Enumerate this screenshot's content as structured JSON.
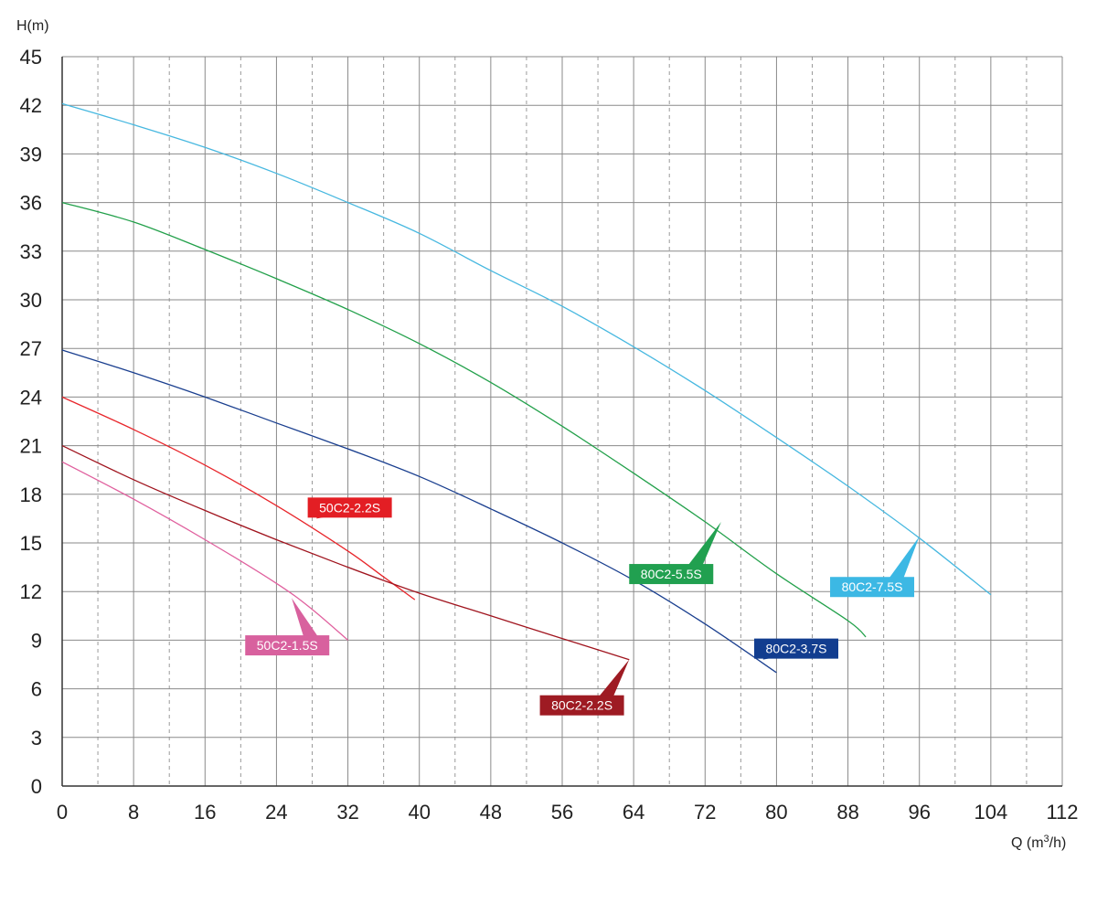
{
  "chart_data": {
    "type": "line",
    "ylabel": "H(m)",
    "xlabel_main": "Q (m",
    "xlabel_sup": "3",
    "xlabel_end": "/h)",
    "xlim": [
      0,
      112
    ],
    "ylim": [
      0,
      45
    ],
    "x_ticks": [
      0,
      8,
      16,
      24,
      32,
      40,
      48,
      56,
      64,
      72,
      80,
      88,
      96,
      104,
      112
    ],
    "y_ticks": [
      0,
      3,
      6,
      9,
      12,
      15,
      18,
      21,
      24,
      27,
      30,
      33,
      36,
      39,
      42,
      45
    ],
    "grid": {
      "major_solid_every": 8,
      "minor_dashed_offset": 4
    },
    "series": [
      {
        "name": "50C2-1.5S",
        "color": "#e0609e",
        "label_color": "#d8619e",
        "points": [
          [
            0,
            20
          ],
          [
            8,
            17.7
          ],
          [
            16,
            15.2
          ],
          [
            24,
            12.5
          ],
          [
            28,
            10.9
          ],
          [
            32,
            9
          ]
        ],
        "label_anchor": [
          25.7,
          11.6
        ],
        "label_pos": [
          20.5,
          9.3
        ]
      },
      {
        "name": "50C2-2.2S",
        "color": "#e8262b",
        "label_color": "#e31e24",
        "points": [
          [
            0,
            24
          ],
          [
            8,
            22
          ],
          [
            16,
            19.8
          ],
          [
            24,
            17.3
          ],
          [
            32,
            14.5
          ],
          [
            36,
            12.9
          ],
          [
            39.5,
            11.5
          ]
        ],
        "label_anchor": [
          28.5,
          16.5
        ],
        "label_pos": [
          27.5,
          17.8
        ]
      },
      {
        "name": "80C2-2.2S",
        "color": "#a0141e",
        "label_color": "#9e1b23",
        "points": [
          [
            0,
            21
          ],
          [
            8,
            18.9
          ],
          [
            16,
            17
          ],
          [
            24,
            15.2
          ],
          [
            32,
            13.5
          ],
          [
            40,
            11.9
          ],
          [
            48,
            10.5
          ],
          [
            56,
            9.1
          ],
          [
            63.5,
            7.8
          ]
        ],
        "label_anchor": [
          63.5,
          7.8
        ],
        "label_pos": [
          53.5,
          5.6
        ]
      },
      {
        "name": "80C2-3.7S",
        "color": "#1a3f8f",
        "label_color": "#123d8f",
        "points": [
          [
            0,
            26.9
          ],
          [
            8,
            25.5
          ],
          [
            16,
            24
          ],
          [
            24,
            22.4
          ],
          [
            32,
            20.8
          ],
          [
            40,
            19.1
          ],
          [
            48,
            17.1
          ],
          [
            56,
            15
          ],
          [
            64,
            12.7
          ],
          [
            72,
            10
          ],
          [
            80,
            7
          ]
        ],
        "label_anchor": [
          78.5,
          7.8
        ],
        "label_pos": [
          77.5,
          9.1
        ]
      },
      {
        "name": "80C2-5.5S",
        "color": "#22a04a",
        "label_color": "#21a050",
        "points": [
          [
            0,
            36
          ],
          [
            8,
            34.8
          ],
          [
            16,
            33.1
          ],
          [
            24,
            31.3
          ],
          [
            32,
            29.4
          ],
          [
            40,
            27.3
          ],
          [
            48,
            24.9
          ],
          [
            56,
            22.2
          ],
          [
            64,
            19.3
          ],
          [
            72,
            16.3
          ],
          [
            80,
            13.1
          ],
          [
            88,
            10.2
          ],
          [
            90,
            9.2
          ]
        ],
        "label_anchor": [
          73.8,
          16.3
        ],
        "label_pos": [
          63.5,
          13.7
        ]
      },
      {
        "name": "80C2-7.5S",
        "color": "#47b8e0",
        "label_color": "#3cb8e4",
        "points": [
          [
            0,
            42.1
          ],
          [
            8,
            40.8
          ],
          [
            16,
            39.4
          ],
          [
            24,
            37.8
          ],
          [
            32,
            36
          ],
          [
            40,
            34.1
          ],
          [
            48,
            31.8
          ],
          [
            56,
            29.6
          ],
          [
            64,
            27.1
          ],
          [
            72,
            24.4
          ],
          [
            80,
            21.5
          ],
          [
            88,
            18.5
          ],
          [
            96,
            15.3
          ],
          [
            104,
            11.8
          ]
        ],
        "label_anchor": [
          96,
          15.4
        ],
        "label_pos": [
          86,
          12.9
        ]
      }
    ]
  }
}
